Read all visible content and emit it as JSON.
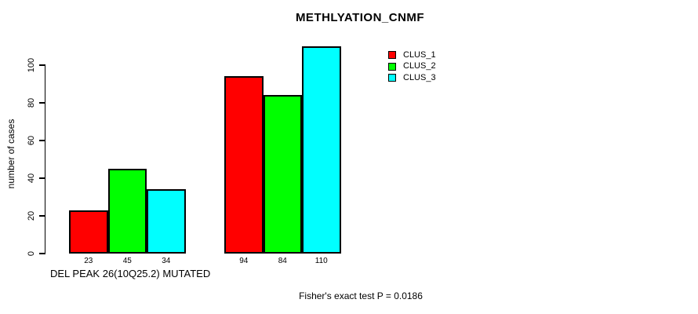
{
  "chart_data": {
    "type": "bar",
    "title": "METHLYATION_CNMF",
    "ylabel": "number of cases",
    "xlabel": "DEL PEAK 26(10Q25.2) MUTATED",
    "annotation": "Fisher's exact test P = 0.0186",
    "series": [
      {
        "name": "CLUS_1",
        "color": "#ff0000",
        "values": [
          23,
          94
        ]
      },
      {
        "name": "CLUS_2",
        "color": "#00ff00",
        "values": [
          45,
          84
        ]
      },
      {
        "name": "CLUS_3",
        "color": "#00ffff",
        "values": [
          34,
          110
        ]
      }
    ],
    "bar_value_labels": [
      [
        23,
        45,
        34
      ],
      [
        94,
        84,
        110
      ]
    ],
    "yticks": [
      0,
      20,
      40,
      60,
      80,
      100
    ],
    "ylim": [
      0,
      110
    ],
    "grid": false,
    "legend_position": "top-right",
    "bar_border_color": "#000000",
    "text_color": "#000000",
    "background_color": "#ffffff"
  }
}
